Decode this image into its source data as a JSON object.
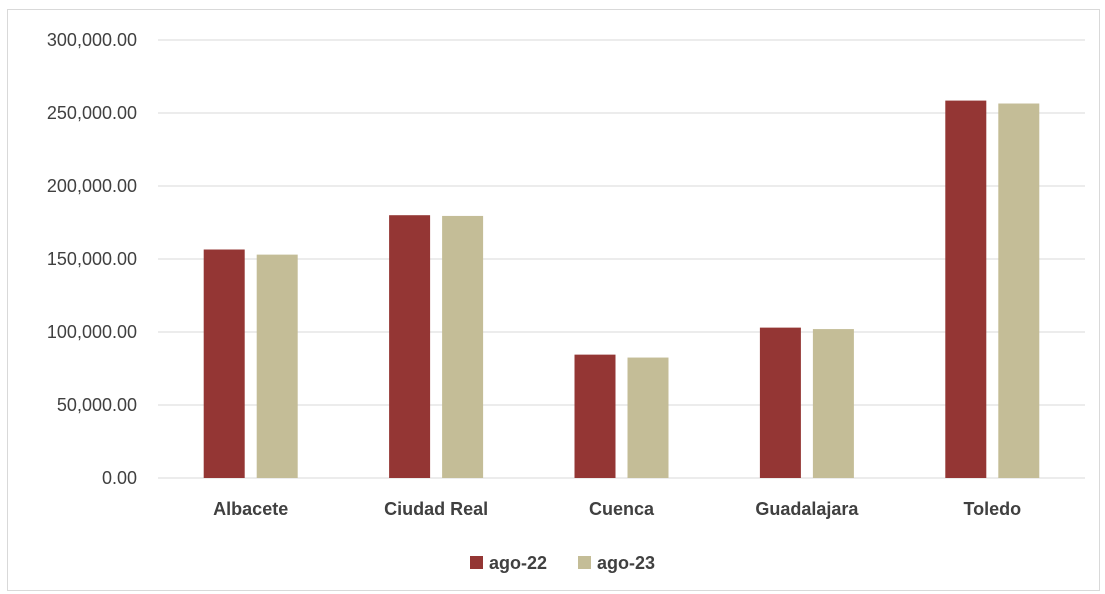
{
  "chart_data": {
    "type": "bar",
    "categories": [
      "Albacete",
      "Ciudad Real",
      "Cuenca",
      "Guadalajara",
      "Toledo"
    ],
    "series": [
      {
        "name": "ago-22",
        "color": "#943634",
        "values": [
          156500,
          180000,
          84500,
          103000,
          258500
        ]
      },
      {
        "name": "ago-23",
        "color": "#c4bd97",
        "values": [
          153000,
          179500,
          82500,
          102000,
          256500
        ]
      }
    ],
    "yticks": [
      "0.00",
      "50,000.00",
      "100,000.00",
      "150,000.00",
      "200,000.00",
      "250,000.00",
      "300,000.00"
    ],
    "ylim": [
      0,
      300000
    ],
    "grid": true,
    "legend_position": "bottom",
    "title": "",
    "xlabel": "",
    "ylabel": ""
  }
}
